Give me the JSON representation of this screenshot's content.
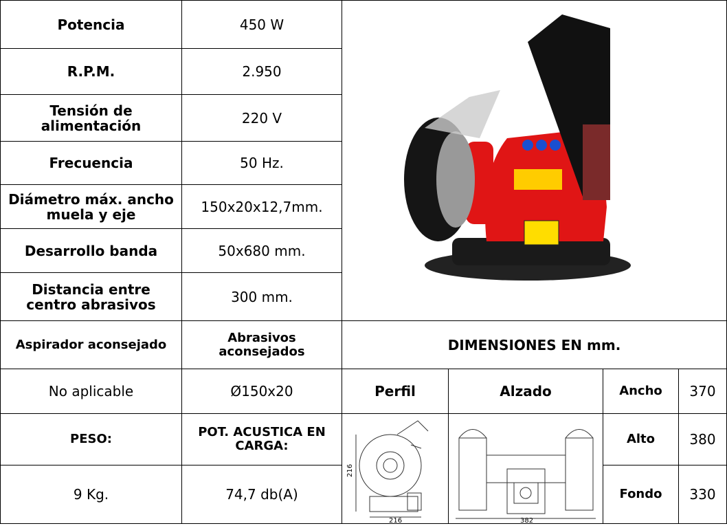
{
  "specs": [
    {
      "label": "Potencia",
      "value": "450 W"
    },
    {
      "label": "R.P.M.",
      "value": "2.950"
    },
    {
      "label": "Tensión de alimentación",
      "value": "220 V"
    },
    {
      "label": "Frecuencia",
      "value": "50 Hz."
    },
    {
      "label": "Diámetro máx. ancho muela y eje",
      "value": "150x20x12,7mm."
    },
    {
      "label": "Desarrollo banda",
      "value": "50x680 mm."
    },
    {
      "label": "Distancia entre centro abrasivos",
      "value": "300 mm."
    }
  ],
  "recommended": {
    "headers": [
      "Aspirador aconsejado",
      "Abrasivos aconsejados"
    ],
    "values": [
      "No aplicable",
      "Ø150x20"
    ]
  },
  "weight": {
    "headers": [
      "PESO:",
      "POT. ACUSTICA EN CARGA:"
    ],
    "values": [
      "9 Kg.",
      "74,7 db(A)"
    ]
  },
  "dimensions": {
    "title": "DIMENSIONES EN mm.",
    "views": [
      "Perfil",
      "Alzado"
    ],
    "measures": [
      {
        "label": "Ancho",
        "value": "370"
      },
      {
        "label": "Alto",
        "value": "380"
      },
      {
        "label": "Fondo",
        "value": "330"
      }
    ],
    "drawing_labels": {
      "profile_height": "216",
      "profile_width": "216",
      "front_width": "382"
    }
  }
}
